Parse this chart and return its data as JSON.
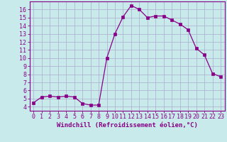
{
  "x": [
    0,
    1,
    2,
    3,
    4,
    5,
    6,
    7,
    8,
    9,
    10,
    11,
    12,
    13,
    14,
    15,
    16,
    17,
    18,
    19,
    20,
    21,
    22,
    23
  ],
  "y": [
    4.5,
    5.2,
    5.3,
    5.2,
    5.3,
    5.2,
    4.4,
    4.2,
    4.2,
    10.0,
    13.0,
    15.1,
    16.5,
    16.0,
    15.0,
    15.2,
    15.2,
    14.7,
    14.2,
    13.5,
    11.2,
    10.4,
    8.1,
    7.7
  ],
  "line_color": "#880088",
  "marker": "s",
  "marker_size": 2.5,
  "bg_color": "#c8eaea",
  "grid_color": "#aaaacc",
  "xlabel": "Windchill (Refroidissement éolien,°C)",
  "xlim": [
    -0.5,
    23.5
  ],
  "ylim": [
    3.5,
    17.0
  ],
  "yticks": [
    4,
    5,
    6,
    7,
    8,
    9,
    10,
    11,
    12,
    13,
    14,
    15,
    16
  ],
  "xticks": [
    0,
    1,
    2,
    3,
    4,
    5,
    6,
    7,
    8,
    9,
    10,
    11,
    12,
    13,
    14,
    15,
    16,
    17,
    18,
    19,
    20,
    21,
    22,
    23
  ],
  "tick_color": "#880088",
  "axis_color": "#880088",
  "label_fontsize": 6.5,
  "tick_fontsize": 6.0
}
